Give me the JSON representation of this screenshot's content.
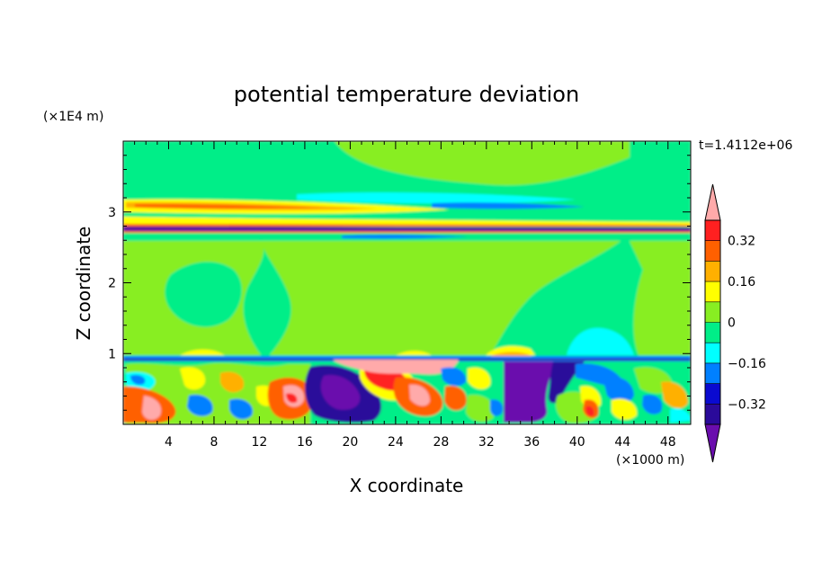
{
  "chart_data": {
    "type": "heatmap",
    "title": "potential temperature deviation",
    "time_label": "t=1.4112e+06",
    "xlabel": "X coordinate",
    "x_unit": "(×1000 m)",
    "ylabel": "Z coordinate",
    "y_unit": "(×1E4 m)",
    "xlim": [
      0,
      50
    ],
    "ylim": [
      0,
      4
    ],
    "x_ticks": [
      "4",
      "8",
      "12",
      "16",
      "20",
      "24",
      "28",
      "32",
      "36",
      "40",
      "44",
      "48"
    ],
    "x_tick_values": [
      4,
      8,
      12,
      16,
      20,
      24,
      28,
      32,
      36,
      40,
      44,
      48
    ],
    "y_ticks": [
      "1",
      "2",
      "3"
    ],
    "y_tick_values": [
      1,
      2,
      3
    ],
    "colorbar": {
      "levels": [
        -0.4,
        -0.32,
        -0.24,
        -0.16,
        -0.08,
        0,
        0.08,
        0.16,
        0.24,
        0.32,
        0.4
      ],
      "labels": [
        "0.32",
        "0.16",
        "0",
        "−0.16",
        "−0.32"
      ],
      "label_values": [
        0.32,
        0.16,
        0,
        -0.16,
        -0.32
      ],
      "colors": [
        "#6a0dad",
        "#2a0a9a",
        "#0a0ad0",
        "#0080ff",
        "#00ffff",
        "#00ee88",
        "#88ee22",
        "#ffff00",
        "#ffb000",
        "#ff6000",
        "#ff2020",
        "#ffaaaa"
      ],
      "extend": "both"
    },
    "grid": false
  }
}
